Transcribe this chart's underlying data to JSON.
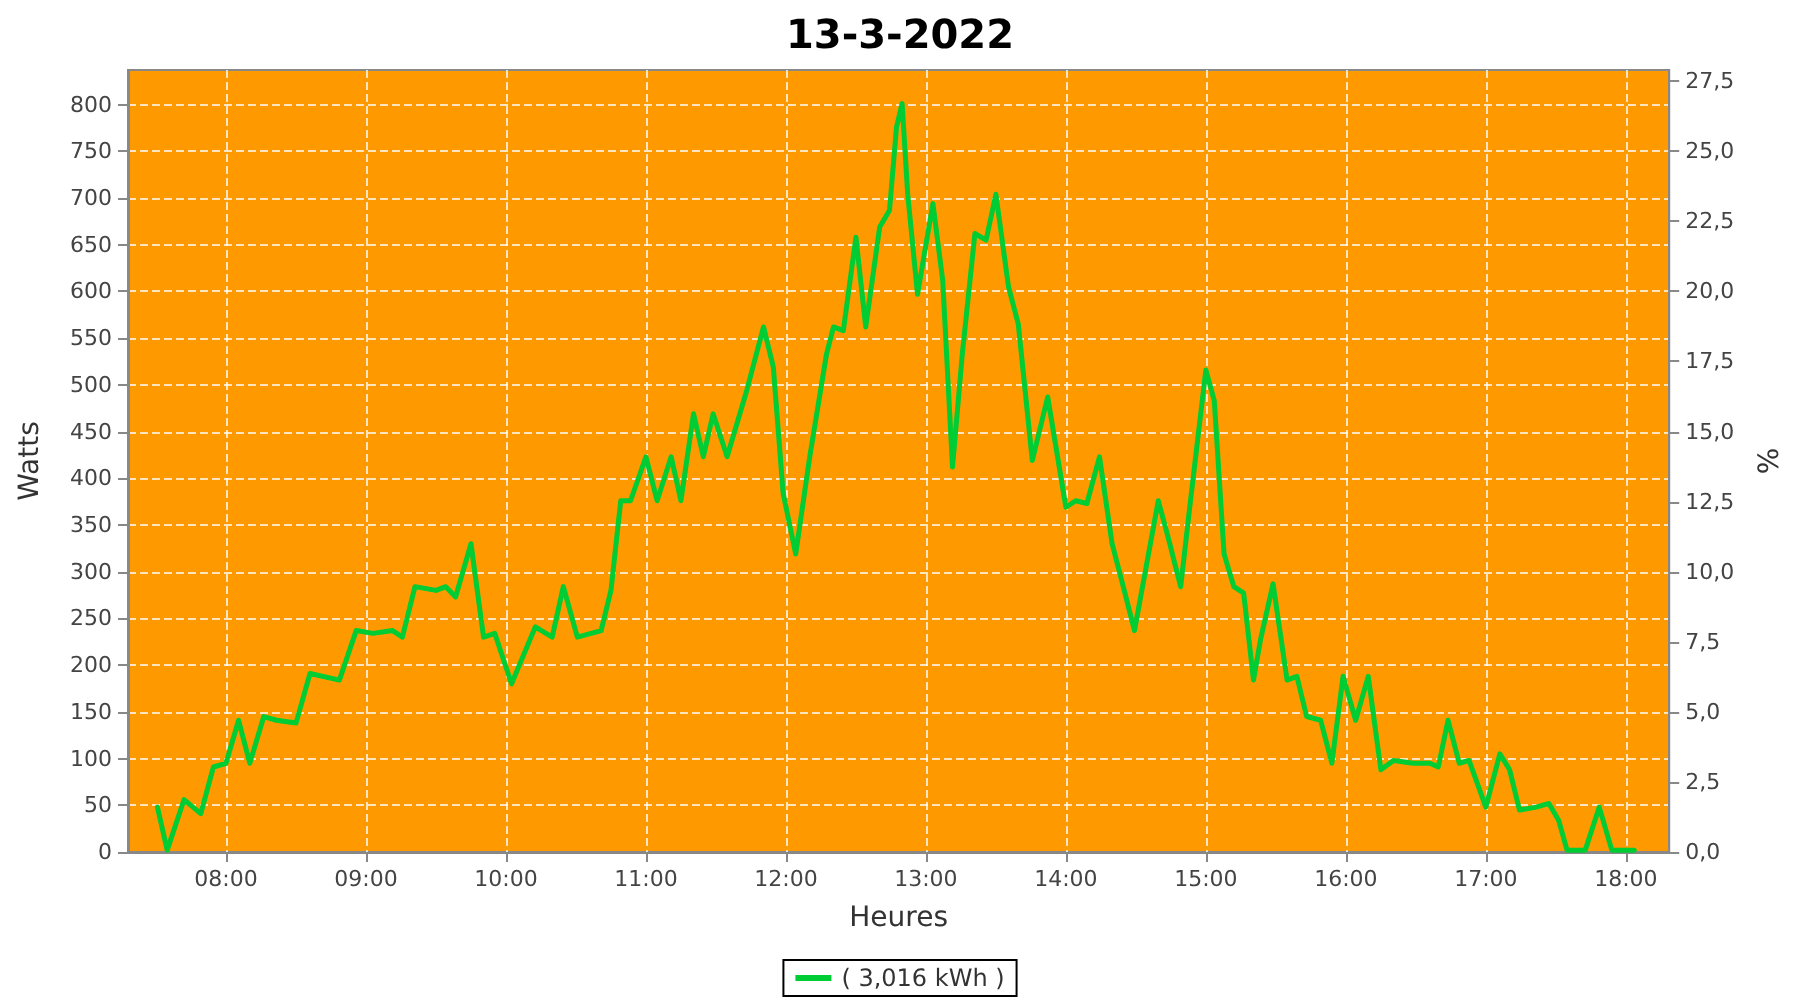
{
  "chart_data": {
    "type": "line",
    "title": "13-3-2022",
    "xlabel": "Heures",
    "ylabel": "Watts",
    "y2label": "%",
    "xlim": [
      7.3,
      18.31
    ],
    "xticks": [
      {
        "value": 8,
        "label": "08:00"
      },
      {
        "value": 9,
        "label": "09:00"
      },
      {
        "value": 10,
        "label": "10:00"
      },
      {
        "value": 11,
        "label": "11:00"
      },
      {
        "value": 12,
        "label": "12:00"
      },
      {
        "value": 13,
        "label": "13:00"
      },
      {
        "value": 14,
        "label": "14:00"
      },
      {
        "value": 15,
        "label": "15:00"
      },
      {
        "value": 16,
        "label": "16:00"
      },
      {
        "value": 17,
        "label": "17:00"
      },
      {
        "value": 18,
        "label": "18:00"
      }
    ],
    "ylim": [
      0,
      837
    ],
    "yticks": [
      0,
      50,
      100,
      150,
      200,
      250,
      300,
      350,
      400,
      450,
      500,
      550,
      600,
      650,
      700,
      750,
      800
    ],
    "y2lim": [
      0,
      27.9
    ],
    "y2ticks": [
      {
        "value": 0,
        "label": "0,0"
      },
      {
        "value": 2.5,
        "label": "2,5"
      },
      {
        "value": 5,
        "label": "5,0"
      },
      {
        "value": 7.5,
        "label": "7,5"
      },
      {
        "value": 10,
        "label": "10,0"
      },
      {
        "value": 12.5,
        "label": "12,5"
      },
      {
        "value": 15,
        "label": "15,0"
      },
      {
        "value": 17.5,
        "label": "17,5"
      },
      {
        "value": 20,
        "label": "20,0"
      },
      {
        "value": 22.5,
        "label": "22,5"
      },
      {
        "value": 25,
        "label": "25,0"
      },
      {
        "value": 27.5,
        "label": "27,5"
      }
    ],
    "grid": true,
    "legend": "bottom",
    "marker": "none",
    "line_style": "solid",
    "series": [
      {
        "name": "( 3,016 kWh )",
        "color": "#00cc33",
        "x": [
          7.51,
          7.58,
          7.7,
          7.82,
          7.91,
          8.0,
          8.09,
          8.17,
          8.27,
          8.36,
          8.5,
          8.6,
          8.81,
          8.93,
          9.05,
          9.19,
          9.26,
          9.35,
          9.5,
          9.57,
          9.64,
          9.75,
          9.84,
          9.92,
          10.04,
          10.21,
          10.33,
          10.41,
          10.51,
          10.68,
          10.75,
          10.82,
          10.89,
          11.0,
          11.08,
          11.18,
          11.25,
          11.34,
          11.41,
          11.48,
          11.58,
          11.72,
          11.84,
          11.91,
          11.98,
          12.07,
          12.17,
          12.29,
          12.34,
          12.41,
          12.5,
          12.57,
          12.67,
          12.74,
          12.79,
          12.83,
          12.87,
          12.94,
          13.05,
          13.12,
          13.19,
          13.26,
          13.35,
          13.43,
          13.5,
          13.59,
          13.66,
          13.76,
          13.87,
          14.0,
          14.07,
          14.15,
          14.24,
          14.33,
          14.41,
          14.49,
          14.66,
          14.73,
          14.82,
          14.89,
          15.0,
          15.06,
          15.13,
          15.2,
          15.27,
          15.34,
          15.39,
          15.48,
          15.58,
          15.65,
          15.72,
          15.82,
          15.9,
          15.98,
          16.07,
          16.16,
          16.25,
          16.34,
          16.48,
          16.6,
          16.66,
          16.73,
          16.81,
          16.88,
          17.0,
          17.1,
          17.17,
          17.24,
          17.36,
          17.45,
          17.52,
          17.58,
          17.71,
          17.81,
          17.9,
          17.99,
          18.06
        ],
        "values": [
          48,
          2,
          56,
          41,
          91,
          95,
          141,
          95,
          145,
          141,
          138,
          191,
          184,
          237,
          234,
          237,
          230,
          284,
          280,
          284,
          273,
          330,
          230,
          234,
          180,
          241,
          230,
          284,
          230,
          237,
          280,
          376,
          376,
          423,
          376,
          423,
          376,
          469,
          423,
          469,
          423,
          494,
          562,
          519,
          384,
          319,
          423,
          533,
          562,
          558,
          658,
          562,
          669,
          687,
          776,
          801,
          704,
          597,
          694,
          612,
          412,
          533,
          662,
          655,
          704,
          605,
          565,
          419,
          487,
          369,
          376,
          373,
          423,
          330,
          284,
          237,
          376,
          337,
          284,
          376,
          516,
          483,
          319,
          284,
          277,
          184,
          227,
          287,
          184,
          188,
          145,
          141,
          95,
          188,
          141,
          188,
          88,
          98,
          95,
          95,
          91,
          141,
          95,
          98,
          48,
          105,
          88,
          45,
          48,
          52,
          34,
          2,
          2,
          48,
          2,
          2,
          2
        ]
      }
    ]
  }
}
